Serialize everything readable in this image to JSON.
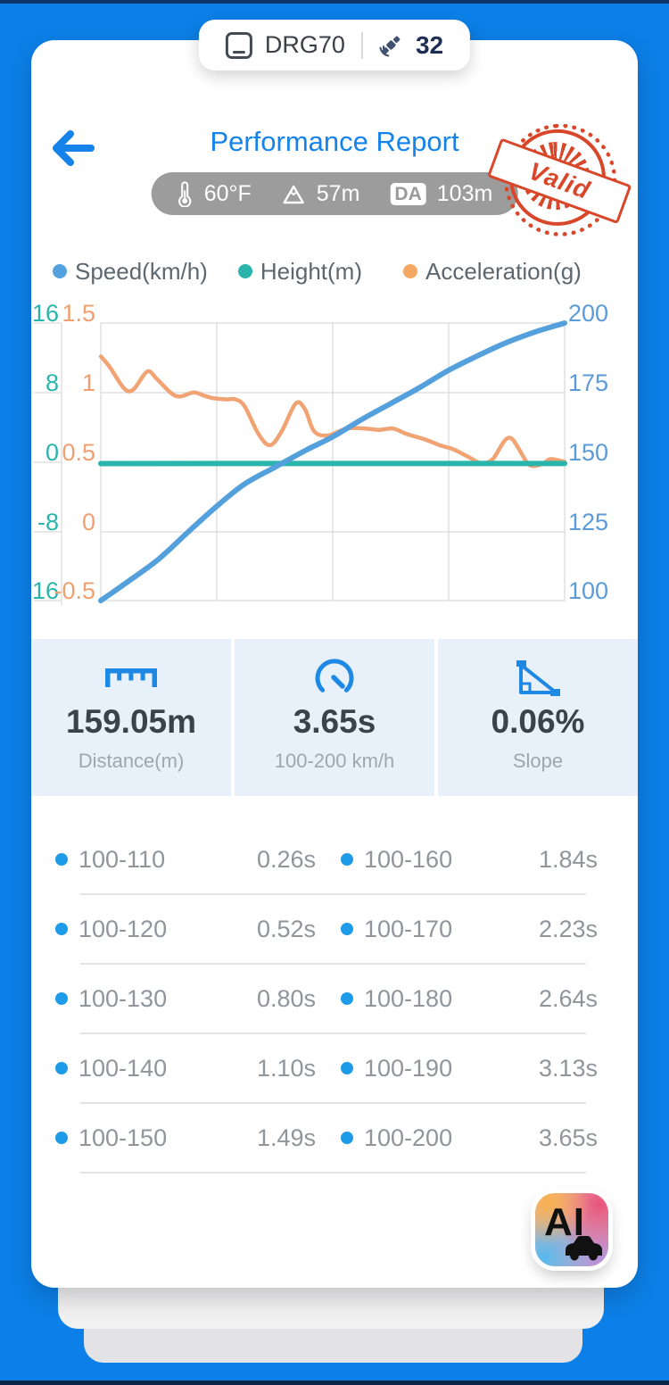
{
  "status_pill": {
    "device": "DRG70",
    "satellites": "32"
  },
  "header": {
    "title": "Performance Report",
    "temperature": "60°F",
    "altitude": "57m",
    "da_label": "DA",
    "da_value": "103m",
    "stamp": "Valid"
  },
  "legend": [
    {
      "label": "Speed(km/h)",
      "color": "#55a1dd"
    },
    {
      "label": "Height(m)",
      "color": "#2ab5ac"
    },
    {
      "label": "Acceleration(g)",
      "color": "#f5a863"
    }
  ],
  "chart_data": {
    "type": "line",
    "grid": true,
    "x_gridline_count": 5,
    "axes": {
      "height_left": {
        "label": "Height(m)",
        "color": "#2ab5ac",
        "range": [
          -16,
          16
        ],
        "ticks": [
          "16",
          "8",
          "0",
          "-8",
          "-16"
        ]
      },
      "accel_left": {
        "label": "Acceleration(g)",
        "color": "#f0a070",
        "range": [
          -0.5,
          1.5
        ],
        "ticks": [
          "1.5",
          "1",
          "0.5",
          "0",
          "-0.5"
        ]
      },
      "speed_right": {
        "label": "Speed(km/h)",
        "color": "#5b9bd7",
        "range": [
          100,
          200
        ],
        "ticks": [
          "200",
          "175",
          "150",
          "125",
          "100"
        ]
      }
    },
    "series": [
      {
        "name": "Speed(km/h)",
        "axis": "speed_right",
        "color": "#54a0dc",
        "width": 6,
        "points": [
          [
            0,
            100
          ],
          [
            0.06,
            107
          ],
          [
            0.125,
            115
          ],
          [
            0.19,
            125
          ],
          [
            0.25,
            134
          ],
          [
            0.31,
            142
          ],
          [
            0.375,
            148
          ],
          [
            0.44,
            154
          ],
          [
            0.5,
            159
          ],
          [
            0.56,
            165
          ],
          [
            0.625,
            171
          ],
          [
            0.69,
            177
          ],
          [
            0.75,
            183
          ],
          [
            0.81,
            188
          ],
          [
            0.875,
            193
          ],
          [
            0.94,
            197
          ],
          [
            1,
            200
          ]
        ]
      },
      {
        "name": "Height(m)",
        "axis": "height_left",
        "color": "#2ab5ac",
        "width": 6,
        "points": [
          [
            0,
            -0.2
          ],
          [
            0.5,
            -0.2
          ],
          [
            1,
            -0.2
          ]
        ]
      },
      {
        "name": "Acceleration(g)",
        "axis": "accel_left",
        "color": "#f2a374",
        "width": 4.5,
        "points": [
          [
            0,
            1.26
          ],
          [
            0.02,
            1.18
          ],
          [
            0.05,
            1.03
          ],
          [
            0.07,
            1.02
          ],
          [
            0.1,
            1.15
          ],
          [
            0.12,
            1.1
          ],
          [
            0.15,
            1.0
          ],
          [
            0.17,
            0.97
          ],
          [
            0.2,
            1.0
          ],
          [
            0.22,
            0.98
          ],
          [
            0.24,
            0.96
          ],
          [
            0.27,
            0.95
          ],
          [
            0.29,
            0.95
          ],
          [
            0.31,
            0.9
          ],
          [
            0.34,
            0.7
          ],
          [
            0.365,
            0.62
          ],
          [
            0.39,
            0.72
          ],
          [
            0.42,
            0.92
          ],
          [
            0.44,
            0.88
          ],
          [
            0.46,
            0.72
          ],
          [
            0.49,
            0.69
          ],
          [
            0.53,
            0.74
          ],
          [
            0.57,
            0.74
          ],
          [
            0.6,
            0.73
          ],
          [
            0.63,
            0.74
          ],
          [
            0.66,
            0.7
          ],
          [
            0.7,
            0.66
          ],
          [
            0.73,
            0.62
          ],
          [
            0.76,
            0.59
          ],
          [
            0.79,
            0.54
          ],
          [
            0.82,
            0.49
          ],
          [
            0.845,
            0.52
          ],
          [
            0.87,
            0.65
          ],
          [
            0.885,
            0.67
          ],
          [
            0.9,
            0.6
          ],
          [
            0.92,
            0.49
          ],
          [
            0.935,
            0.47
          ],
          [
            0.955,
            0.49
          ],
          [
            0.97,
            0.52
          ],
          [
            1,
            0.5
          ]
        ]
      }
    ]
  },
  "stats": [
    {
      "icon": "ruler-icon",
      "value": "159.05m",
      "label": "Distance(m)"
    },
    {
      "icon": "gauge-icon",
      "value": "3.65s",
      "label": "100-200 km/h"
    },
    {
      "icon": "slope-icon",
      "value": "0.06%",
      "label": "Slope"
    }
  ],
  "table": {
    "rows": [
      {
        "l": "100-110",
        "lt": "0.26s",
        "r": "100-160",
        "rt": "1.84s"
      },
      {
        "l": "100-120",
        "lt": "0.52s",
        "r": "100-170",
        "rt": "2.23s"
      },
      {
        "l": "100-130",
        "lt": "0.80s",
        "r": "100-180",
        "rt": "2.64s"
      },
      {
        "l": "100-140",
        "lt": "1.10s",
        "r": "100-190",
        "rt": "3.13s"
      },
      {
        "l": "100-150",
        "lt": "1.49s",
        "r": "100-200",
        "rt": "3.65s"
      }
    ]
  },
  "ai_button": {
    "label": "AI"
  },
  "colors": {
    "background": "#0c80e8",
    "title_blue": "#1583e9",
    "stats_bg": "#e8f1f9",
    "stamp_red": "#d9472b",
    "table_dot": "#1d9be8"
  }
}
